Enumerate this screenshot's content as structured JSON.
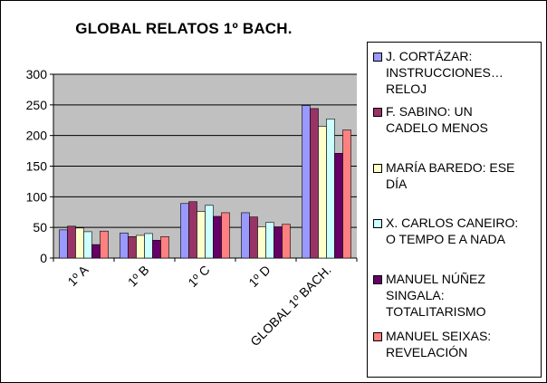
{
  "chart_data": {
    "type": "bar",
    "title": "GLOBAL RELATOS 1º BACH.",
    "categories": [
      "1º A",
      "1º B",
      "1º C",
      "1º D",
      "GLOBAL 1º BACH."
    ],
    "ylim": [
      0,
      300
    ],
    "yticks": [
      "0",
      "50",
      "100",
      "150",
      "200",
      "250",
      "300"
    ],
    "grid": true,
    "legend_position": "right",
    "series": [
      {
        "name": "J. CORTÁZAR: INSTRUCCIONES… RELOJ",
        "color": "#9999ff",
        "values": [
          46,
          41,
          89,
          74,
          249
        ]
      },
      {
        "name": "F. SABINO: UN CADELO MENOS",
        "color": "#993366",
        "values": [
          52,
          35,
          92,
          67,
          244
        ]
      },
      {
        "name": "MARÍA BAREDO: ESE DÍA",
        "color": "#ffffcc",
        "values": [
          49,
          37,
          76,
          51,
          215
        ]
      },
      {
        "name": "X. CARLOS CANEIRO: O TEMPO E A NADA",
        "color": "#ccffff",
        "values": [
          43,
          40,
          86,
          58,
          227
        ]
      },
      {
        "name": "MANUEL NÚÑEZ SINGALA: TOTALITARISMO",
        "color": "#660066",
        "values": [
          22,
          29,
          68,
          51,
          171
        ]
      },
      {
        "name": "MANUEL SEIXAS: REVELACIÓN",
        "color": "#ff8080",
        "values": [
          44,
          35,
          74,
          55,
          209
        ]
      }
    ]
  },
  "legend": {
    "items": [
      {
        "label": "J. CORTÁZAR:\nINSTRUCCIONES…\nRELOJ"
      },
      {
        "label": "F. SABINO: UN\nCADELO MENOS"
      },
      {
        "label": "MARÍA BAREDO: ESE\nDÍA"
      },
      {
        "label": "X. CARLOS CANEIRO:\nO TEMPO E A NADA"
      },
      {
        "label": "MANUEL NÚÑEZ\nSINGALA:\nTOTALITARISMO"
      },
      {
        "label": "MANUEL SEIXAS:\nREVELACIÓN"
      }
    ]
  },
  "colors": {
    "plot_area": "#c0c0c0",
    "gridline": "#000000",
    "bar_border": "#000000"
  }
}
